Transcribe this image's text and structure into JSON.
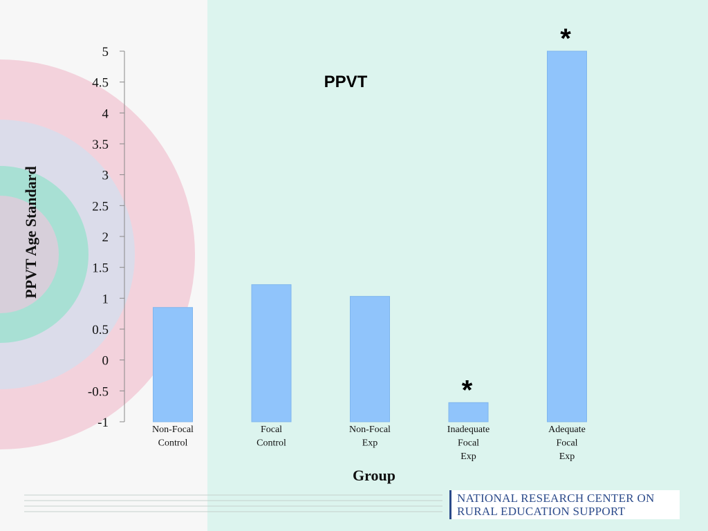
{
  "chart_data": {
    "type": "bar",
    "title": "PPVT",
    "xlabel": "Group",
    "ylabel": "PPVT Age Standard",
    "ylim": [
      -1,
      5
    ],
    "yticks": [
      "5",
      "4.5",
      "4",
      "3.5",
      "3",
      "2.5",
      "2",
      "1.5",
      "1",
      "0.5",
      "0",
      "-0.5",
      "-1"
    ],
    "ytick_values": [
      5,
      4.5,
      4,
      3.5,
      3,
      2.5,
      2,
      1.5,
      1,
      0.5,
      0,
      -0.5,
      -1
    ],
    "categories": [
      [
        "Non-Focal",
        "Control"
      ],
      [
        "Focal",
        "Control"
      ],
      [
        "Non-Focal",
        "Exp"
      ],
      [
        "Inadequate",
        "Focal",
        "Exp"
      ],
      [
        "Adequate",
        "Focal",
        "Exp"
      ]
    ],
    "values": [
      0.85,
      1.22,
      1.03,
      -0.69,
      5.0
    ],
    "significance_markers": [
      "",
      "",
      "",
      "*",
      "*"
    ],
    "bar_color": "#90c4fb",
    "grid": false,
    "legend": "none"
  },
  "logo": {
    "line1": "NATIONAL RESEARCH CENTER ON",
    "line2": "RURAL EDUCATION SUPPORT"
  },
  "colors": {
    "background": "#dcf4ee",
    "panel": "#f7f7f7",
    "ring_pink": "#f3d2dc",
    "ring_lavender": "#dbdcea",
    "ring_teal": "#a8e0d4",
    "ring_core": "#d7cfda",
    "logo_text": "#2b4a8a"
  }
}
